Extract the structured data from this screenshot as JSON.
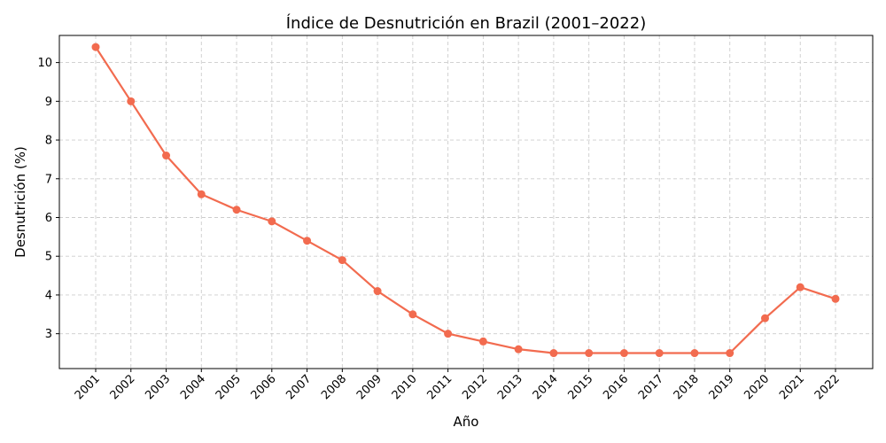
{
  "chart_data": {
    "type": "line",
    "title": "Índice de Desnutrición en Brazil (2001–2022)",
    "xlabel": "Año",
    "ylabel": "Desnutrición (%)",
    "x": [
      "2001",
      "2002",
      "2003",
      "2004",
      "2005",
      "2006",
      "2007",
      "2008",
      "2009",
      "2010",
      "2011",
      "2012",
      "2013",
      "2014",
      "2015",
      "2016",
      "2017",
      "2018",
      "2019",
      "2020",
      "2021",
      "2022"
    ],
    "yticks": [
      3,
      4,
      5,
      6,
      7,
      8,
      9,
      10
    ],
    "ylim": [
      2.1,
      10.7
    ],
    "grid": true,
    "series": [
      {
        "name": "",
        "color": "#f26b4f",
        "values": [
          10.4,
          9.0,
          7.6,
          6.6,
          6.2,
          5.9,
          5.4,
          4.9,
          4.1,
          3.5,
          3.0,
          2.8,
          2.6,
          2.5,
          2.5,
          2.5,
          2.5,
          2.5,
          2.5,
          3.4,
          4.2,
          3.9
        ]
      }
    ]
  }
}
